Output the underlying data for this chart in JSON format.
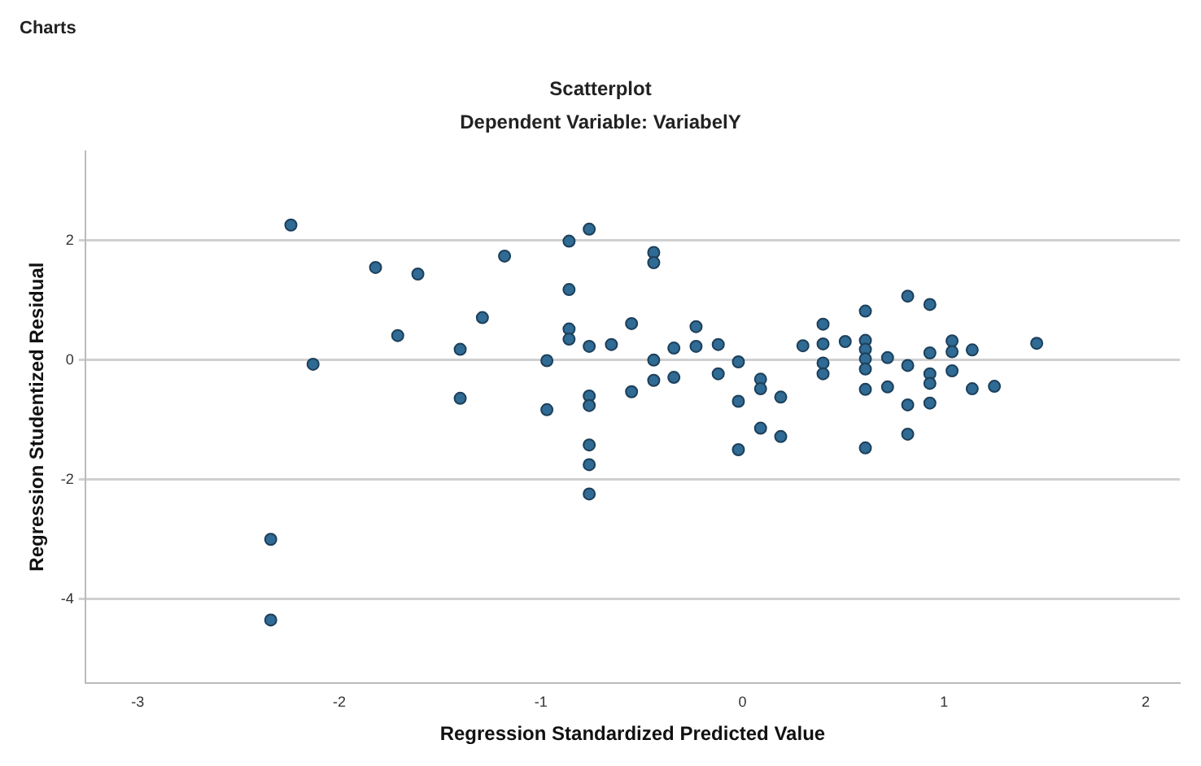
{
  "chart_data": {
    "type": "scatter",
    "title": "Scatterplot",
    "subtitle": "Dependent Variable: VariabelY",
    "xlabel": "Regression Standardized Predicted Value",
    "ylabel": "Regression Studentized Residual",
    "annotations": [
      "Charts"
    ],
    "x": [
      -2.24,
      -1.82,
      -1.61,
      -1.71,
      -2.13,
      -2.34,
      -2.34,
      -0.76,
      -0.86,
      -1.18,
      -0.44,
      -0.44,
      -0.86,
      -1.29,
      -0.55,
      -0.23,
      -0.86,
      -0.86,
      -1.4,
      -0.76,
      -0.65,
      -0.34,
      -0.23,
      -0.12,
      0.3,
      -0.97,
      -0.44,
      -0.02,
      -0.44,
      -0.34,
      -0.12,
      0.09,
      0.09,
      0.19,
      -0.02,
      -0.55,
      -1.4,
      -0.97,
      -0.76,
      -0.76,
      -0.76,
      -0.76,
      -0.76,
      0.09,
      0.19,
      -0.02,
      0.4,
      0.4,
      0.4,
      0.4,
      0.51,
      0.61,
      0.61,
      0.61,
      0.61,
      0.61,
      0.61,
      0.61,
      0.72,
      0.72,
      0.82,
      0.82,
      0.82,
      0.82,
      0.93,
      0.93,
      0.93,
      0.93,
      0.93,
      1.04,
      1.04,
      1.04,
      1.14,
      1.14,
      1.25,
      1.46
    ],
    "values": [
      2.26,
      1.55,
      1.44,
      0.41,
      -0.07,
      -3.0,
      -4.35,
      2.19,
      1.99,
      1.74,
      1.8,
      1.63,
      1.18,
      0.71,
      0.61,
      0.56,
      0.52,
      0.35,
      0.18,
      0.23,
      0.26,
      0.2,
      0.23,
      0.26,
      0.24,
      -0.01,
      0.0,
      -0.03,
      -0.34,
      -0.29,
      -0.23,
      -0.32,
      -0.48,
      -0.62,
      -0.69,
      -0.53,
      -0.64,
      -0.83,
      -0.6,
      -0.76,
      -1.42,
      -1.75,
      -2.24,
      -1.14,
      -1.28,
      -1.5,
      0.6,
      0.27,
      -0.05,
      -0.23,
      0.31,
      0.82,
      0.33,
      0.18,
      0.02,
      -0.15,
      -0.49,
      -1.47,
      0.04,
      -0.45,
      1.07,
      -0.09,
      -0.75,
      -1.24,
      0.93,
      0.12,
      -0.23,
      -0.39,
      -0.72,
      0.32,
      0.14,
      -0.18,
      0.17,
      -0.48,
      -0.44,
      0.28
    ],
    "color": "#2f6b94",
    "marker": "circle",
    "xlim": [
      -3.26,
      2.17
    ],
    "ylim": [
      -5.4,
      3.5
    ],
    "xticks": [
      -3,
      -2,
      -1,
      0,
      1,
      2
    ],
    "yticks": [
      -4,
      -2,
      0,
      2
    ],
    "grid": "y",
    "legend": false
  }
}
